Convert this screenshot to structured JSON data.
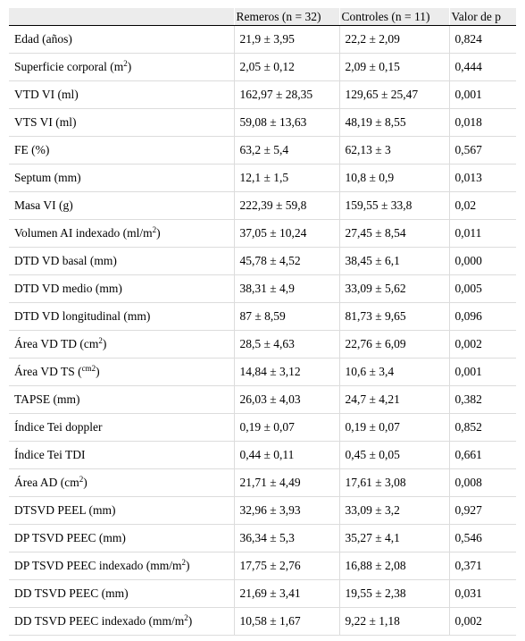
{
  "headers": [
    "",
    "Remeros (n = 32)",
    "Controles (n = 11)",
    "Valor de p"
  ],
  "rows": [
    {
      "label": "Edad (años)",
      "remeros": "21,9 ± 3,95",
      "controles": "22,2 ± 2,09",
      "p": "0,824"
    },
    {
      "label": "Superficie corporal (m",
      "sup": "2",
      "after": ")",
      "remeros": "2,05 ± 0,12",
      "controles": "2,09 ± 0,15",
      "p": "0,444"
    },
    {
      "label": "VTD VI (ml)",
      "remeros": "162,97 ± 28,35",
      "controles": "129,65 ± 25,47",
      "p": "0,001"
    },
    {
      "label": "VTS VI (ml)",
      "remeros": "59,08 ± 13,63",
      "controles": "48,19 ± 8,55",
      "p": "0,018"
    },
    {
      "label": "FE (%)",
      "remeros": "63,2 ± 5,4",
      "controles": "62,13 ± 3",
      "p": "0,567"
    },
    {
      "label": "Septum (mm)",
      "remeros": "12,1 ± 1,5",
      "controles": "10,8 ± 0,9",
      "p": "0,013"
    },
    {
      "label": "Masa VI (g)",
      "remeros": "222,39 ± 59,8",
      "controles": "159,55 ± 33,8",
      "p": "0,02"
    },
    {
      "label": "Volumen AI indexado (ml/m",
      "sup": "2",
      "after": ")",
      "remeros": "37,05 ± 10,24",
      "controles": "27,45 ± 8,54",
      "p": "0,011"
    },
    {
      "label": "DTD VD basal (mm)",
      "remeros": "45,78 ± 4,52",
      "controles": "38,45 ± 6,1",
      "p": "0,000"
    },
    {
      "label": "DTD VD medio (mm)",
      "remeros": "38,31 ± 4,9",
      "controles": "33,09 ± 5,62",
      "p": "0,005"
    },
    {
      "label": "DTD VD longitudinal (mm)",
      "remeros": "87 ± 8,59",
      "controles": "81,73 ± 9,65",
      "p": "0,096"
    },
    {
      "label": "Área VD TD (cm",
      "sup": "2",
      "after": ")",
      "remeros": "28,5 ± 4,63",
      "controles": "22,76 ± 6,09",
      "p": "0,002"
    },
    {
      "label": "Área VD TS (",
      "sup": "cm2",
      "after": ")",
      "remeros": "14,84 ± 3,12",
      "controles": "10,6 ± 3,4",
      "p": "0,001"
    },
    {
      "label": "TAPSE (mm)",
      "remeros": "26,03 ± 4,03",
      "controles": "24,7 ± 4,21",
      "p": "0,382"
    },
    {
      "label": "Índice Tei doppler",
      "remeros": "0,19 ± 0,07",
      "controles": "0,19 ± 0,07",
      "p": "0,852"
    },
    {
      "label": "Índice Tei TDI",
      "remeros": "0,44 ± 0,11",
      "controles": "0,45 ± 0,05",
      "p": "0,661"
    },
    {
      "label": "Área AD (cm",
      "sup": "2",
      "after": ")",
      "remeros": "21,71 ± 4,49",
      "controles": "17,61 ± 3,08",
      "p": "0,008"
    },
    {
      "label": "DTSVD PEEL (mm)",
      "remeros": "32,96 ± 3,93",
      "controles": "33,09 ± 3,2",
      "p": "0,927"
    },
    {
      "label": "DP TSVD PEEC (mm)",
      "remeros": "36,34 ± 5,3",
      "controles": "35,27 ± 4,1",
      "p": "0,546"
    },
    {
      "label": "DP TSVD PEEC indexado (mm/m",
      "sup": "2",
      "after": ")",
      "remeros": "17,75 ± 2,76",
      "controles": "16,88 ± 2,08",
      "p": "0,371"
    },
    {
      "label": "DD TSVD PEEC (mm)",
      "remeros": "21,69 ± 3,41",
      "controles": "19,55 ± 2,38",
      "p": "0,031"
    },
    {
      "label": "DD TSVD PEEC indexado (mm/m",
      "sup": "2",
      "after": ")",
      "remeros": "10,58 ± 1,67",
      "controles": "9,22 ± 1,18",
      "p": "0,002"
    }
  ]
}
